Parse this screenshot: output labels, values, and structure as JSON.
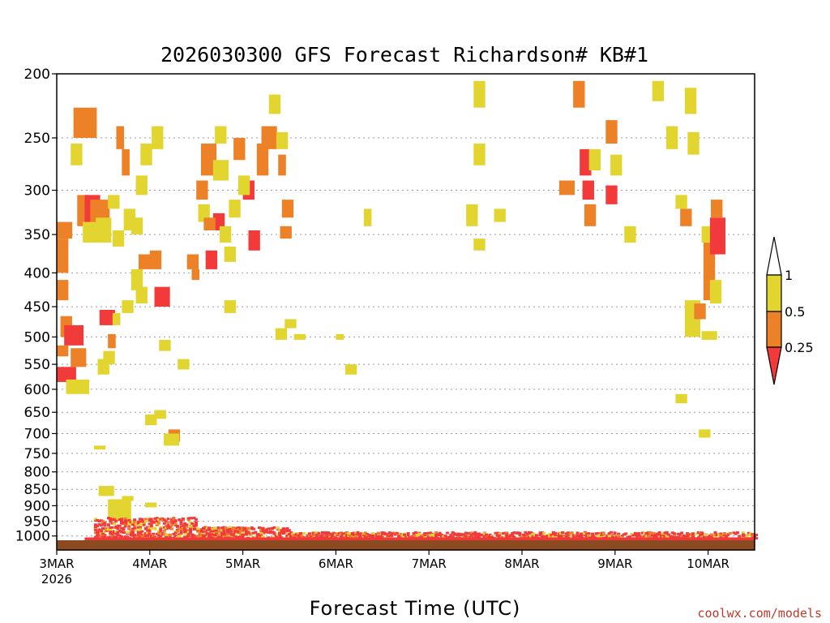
{
  "chart_data": {
    "type": "heatmap",
    "title": "2026030300 GFS Forecast Richardson# KB#1",
    "xlabel": "Forecast Time (UTC)",
    "ylabel": "",
    "credit": "coolwx.com/models",
    "y_scale": "log",
    "ylim": [
      200,
      1050
    ],
    "y_ticks": [
      "200",
      "250",
      "300",
      "350",
      "400",
      "450",
      "500",
      "550",
      "600",
      "650",
      "700",
      "750",
      "800",
      "850",
      "900",
      "950",
      "1000"
    ],
    "xlim": [
      "2026-03-03 00Z",
      "2026-03-10 12Z"
    ],
    "x_ticks": [
      {
        "label": "3MAR",
        "sub": "2026",
        "day": 0
      },
      {
        "label": "4MAR",
        "sub": "",
        "day": 1
      },
      {
        "label": "5MAR",
        "sub": "",
        "day": 2
      },
      {
        "label": "6MAR",
        "sub": "",
        "day": 3
      },
      {
        "label": "7MAR",
        "sub": "",
        "day": 4
      },
      {
        "label": "8MAR",
        "sub": "",
        "day": 5
      },
      {
        "label": "9MAR",
        "sub": "",
        "day": 6
      },
      {
        "label": "10MAR",
        "sub": "",
        "day": 7
      }
    ],
    "grid": true,
    "legend": {
      "placement": "right",
      "levels": [
        "1",
        "0.5",
        "0.25"
      ],
      "colors": {
        "low": "#f23a3a",
        "mid": "#ed8127",
        "high": "#e3d530",
        "ground": "#8c4a22"
      }
    },
    "cells": [
      {
        "day": 0.0,
        "hours": 3,
        "p_top": 515,
        "p_bot": 535,
        "bin": "mid"
      },
      {
        "day": 0.0,
        "hours": 5,
        "p_top": 555,
        "p_bot": 585,
        "bin": "low"
      },
      {
        "day": 0.0,
        "hours": 4,
        "p_top": 335,
        "p_bot": 355,
        "bin": "mid"
      },
      {
        "day": 0.0,
        "hours": 3,
        "p_top": 355,
        "p_bot": 400,
        "bin": "mid"
      },
      {
        "day": 0.0,
        "hours": 3,
        "p_top": 410,
        "p_bot": 440,
        "bin": "mid"
      },
      {
        "day": 0.04,
        "hours": 3,
        "p_top": 465,
        "p_bot": 500,
        "bin": "mid"
      },
      {
        "day": 0.08,
        "hours": 5,
        "p_top": 480,
        "p_bot": 515,
        "bin": "low"
      },
      {
        "day": 0.1,
        "hours": 6,
        "p_top": 580,
        "p_bot": 610,
        "bin": "high"
      },
      {
        "day": 0.15,
        "hours": 4,
        "p_top": 520,
        "p_bot": 555,
        "bin": "mid"
      },
      {
        "day": 0.18,
        "hours": 6,
        "p_top": 225,
        "p_bot": 250,
        "bin": "mid"
      },
      {
        "day": 0.15,
        "hours": 3,
        "p_top": 255,
        "p_bot": 275,
        "bin": "high"
      },
      {
        "day": 0.22,
        "hours": 3,
        "p_top": 305,
        "p_bot": 340,
        "bin": "mid"
      },
      {
        "day": 0.3,
        "hours": 4,
        "p_top": 305,
        "p_bot": 345,
        "bin": "low"
      },
      {
        "day": 0.36,
        "hours": 5,
        "p_top": 310,
        "p_bot": 335,
        "bin": "mid"
      },
      {
        "day": 0.28,
        "hours": 5,
        "p_top": 335,
        "p_bot": 360,
        "bin": "high"
      },
      {
        "day": 0.42,
        "hours": 4,
        "p_top": 330,
        "p_bot": 360,
        "bin": "high"
      },
      {
        "day": 0.46,
        "hours": 4,
        "p_top": 455,
        "p_bot": 480,
        "bin": "low"
      },
      {
        "day": 0.44,
        "hours": 3,
        "p_top": 540,
        "p_bot": 570,
        "bin": "high"
      },
      {
        "day": 0.55,
        "hours": 2,
        "p_top": 495,
        "p_bot": 520,
        "bin": "mid"
      },
      {
        "day": 0.6,
        "hours": 2,
        "p_top": 460,
        "p_bot": 480,
        "bin": "high"
      },
      {
        "day": 0.64,
        "hours": 2,
        "p_top": 240,
        "p_bot": 260,
        "bin": "mid"
      },
      {
        "day": 0.7,
        "hours": 2,
        "p_top": 260,
        "p_bot": 285,
        "bin": "mid"
      },
      {
        "day": 0.85,
        "hours": 3,
        "p_top": 420,
        "p_bot": 445,
        "bin": "high"
      },
      {
        "day": 0.88,
        "hours": 3,
        "p_top": 375,
        "p_bot": 395,
        "bin": "mid"
      },
      {
        "day": 0.95,
        "hours": 3,
        "p_top": 655,
        "p_bot": 680,
        "bin": "high"
      },
      {
        "day": 1.05,
        "hours": 4,
        "p_top": 420,
        "p_bot": 450,
        "bin": "low"
      },
      {
        "day": 1.1,
        "hours": 3,
        "p_top": 505,
        "p_bot": 525,
        "bin": "high"
      },
      {
        "day": 1.2,
        "hours": 3,
        "p_top": 690,
        "p_bot": 720,
        "bin": "mid"
      },
      {
        "day": 1.3,
        "hours": 3,
        "p_top": 540,
        "p_bot": 560,
        "bin": "high"
      },
      {
        "day": 1.55,
        "hours": 4,
        "p_top": 255,
        "p_bot": 285,
        "bin": "mid"
      },
      {
        "day": 1.68,
        "hours": 4,
        "p_top": 270,
        "p_bot": 290,
        "bin": "high"
      },
      {
        "day": 1.6,
        "hours": 3,
        "p_top": 370,
        "p_bot": 395,
        "bin": "low"
      },
      {
        "day": 1.68,
        "hours": 3,
        "p_top": 325,
        "p_bot": 345,
        "bin": "low"
      },
      {
        "day": 2.0,
        "hours": 3,
        "p_top": 290,
        "p_bot": 310,
        "bin": "low"
      },
      {
        "day": 2.06,
        "hours": 3,
        "p_top": 345,
        "p_bot": 370,
        "bin": "low"
      },
      {
        "day": 2.15,
        "hours": 3,
        "p_top": 255,
        "p_bot": 285,
        "bin": "mid"
      },
      {
        "day": 2.2,
        "hours": 4,
        "p_top": 240,
        "p_bot": 260,
        "bin": "mid"
      },
      {
        "day": 2.28,
        "hours": 3,
        "p_top": 215,
        "p_bot": 230,
        "bin": "high"
      },
      {
        "day": 2.35,
        "hours": 3,
        "p_top": 485,
        "p_bot": 505,
        "bin": "high"
      },
      {
        "day": 2.36,
        "hours": 3,
        "p_top": 245,
        "p_bot": 260,
        "bin": "high"
      },
      {
        "day": 2.38,
        "hours": 2,
        "p_top": 265,
        "p_bot": 285,
        "bin": "mid"
      },
      {
        "day": 5.4,
        "hours": 4,
        "p_top": 290,
        "p_bot": 305,
        "bin": "mid"
      },
      {
        "day": 5.55,
        "hours": 3,
        "p_top": 205,
        "p_bot": 225,
        "bin": "mid"
      },
      {
        "day": 5.62,
        "hours": 3,
        "p_top": 260,
        "p_bot": 285,
        "bin": "low"
      },
      {
        "day": 5.65,
        "hours": 3,
        "p_top": 290,
        "p_bot": 310,
        "bin": "low"
      },
      {
        "day": 5.67,
        "hours": 3,
        "p_top": 315,
        "p_bot": 340,
        "bin": "mid"
      },
      {
        "day": 5.72,
        "hours": 3,
        "p_top": 260,
        "p_bot": 280,
        "bin": "high"
      },
      {
        "day": 5.9,
        "hours": 3,
        "p_top": 235,
        "p_bot": 255,
        "bin": "mid"
      },
      {
        "day": 5.9,
        "hours": 3,
        "p_top": 295,
        "p_bot": 315,
        "bin": "low"
      },
      {
        "day": 5.95,
        "hours": 3,
        "p_top": 265,
        "p_bot": 285,
        "bin": "high"
      },
      {
        "day": 6.4,
        "hours": 3,
        "p_top": 205,
        "p_bot": 220,
        "bin": "high"
      },
      {
        "day": 6.55,
        "hours": 3,
        "p_top": 240,
        "p_bot": 260,
        "bin": "high"
      },
      {
        "day": 6.1,
        "hours": 3,
        "p_top": 340,
        "p_bot": 360,
        "bin": "high"
      },
      {
        "day": 6.75,
        "hours": 4,
        "p_top": 440,
        "p_bot": 500,
        "bin": "high"
      },
      {
        "day": 6.85,
        "hours": 3,
        "p_top": 445,
        "p_bot": 470,
        "bin": "mid"
      },
      {
        "day": 6.93,
        "hours": 3,
        "p_top": 340,
        "p_bot": 360,
        "bin": "high"
      },
      {
        "day": 6.93,
        "hours": 4,
        "p_top": 490,
        "p_bot": 505,
        "bin": "high"
      },
      {
        "day": 6.95,
        "hours": 3,
        "p_top": 360,
        "p_bot": 440,
        "bin": "mid"
      },
      {
        "day": 7.02,
        "hours": 3,
        "p_top": 410,
        "p_bot": 445,
        "bin": "high"
      },
      {
        "day": 7.02,
        "hours": 4,
        "p_top": 330,
        "p_bot": 375,
        "bin": "low"
      },
      {
        "day": 7.03,
        "hours": 3,
        "p_top": 310,
        "p_bot": 330,
        "bin": "mid"
      },
      {
        "day": 6.75,
        "hours": 3,
        "p_top": 210,
        "p_bot": 230,
        "bin": "high"
      },
      {
        "day": 6.78,
        "hours": 3,
        "p_top": 245,
        "p_bot": 265,
        "bin": "high"
      },
      {
        "day": 6.7,
        "hours": 3,
        "p_top": 320,
        "p_bot": 340,
        "bin": "mid"
      },
      {
        "day": 6.65,
        "hours": 3,
        "p_top": 305,
        "p_bot": 320,
        "bin": "high"
      },
      {
        "day": 6.9,
        "hours": 3,
        "p_top": 690,
        "p_bot": 710,
        "bin": "high"
      },
      {
        "day": 6.65,
        "hours": 3,
        "p_top": 610,
        "p_bot": 630,
        "bin": "high"
      },
      {
        "day": 4.7,
        "hours": 3,
        "p_top": 320,
        "p_bot": 335,
        "bin": "high"
      },
      {
        "day": 4.4,
        "hours": 3,
        "p_top": 315,
        "p_bot": 340,
        "bin": "high"
      },
      {
        "day": 4.48,
        "hours": 3,
        "p_top": 205,
        "p_bot": 225,
        "bin": "high"
      },
      {
        "day": 4.48,
        "hours": 3,
        "p_top": 255,
        "p_bot": 275,
        "bin": "high"
      },
      {
        "day": 4.48,
        "hours": 3,
        "p_top": 355,
        "p_bot": 370,
        "bin": "high"
      },
      {
        "day": 3.3,
        "hours": 2,
        "p_top": 320,
        "p_bot": 340,
        "bin": "high"
      },
      {
        "day": 2.55,
        "hours": 3,
        "p_top": 495,
        "p_bot": 505,
        "bin": "high"
      },
      {
        "day": 2.45,
        "hours": 3,
        "p_top": 470,
        "p_bot": 485,
        "bin": "high"
      },
      {
        "day": 2.42,
        "hours": 3,
        "p_top": 310,
        "p_bot": 330,
        "bin": "mid"
      },
      {
        "day": 2.4,
        "hours": 3,
        "p_top": 340,
        "p_bot": 355,
        "bin": "mid"
      },
      {
        "day": 1.9,
        "hours": 3,
        "p_top": 250,
        "p_bot": 270,
        "bin": "mid"
      },
      {
        "day": 1.95,
        "hours": 3,
        "p_top": 285,
        "p_bot": 305,
        "bin": "high"
      },
      {
        "day": 1.85,
        "hours": 3,
        "p_top": 310,
        "p_bot": 330,
        "bin": "high"
      },
      {
        "day": 1.8,
        "hours": 3,
        "p_top": 365,
        "p_bot": 385,
        "bin": "high"
      },
      {
        "day": 1.8,
        "hours": 3,
        "p_top": 440,
        "p_bot": 460,
        "bin": "high"
      },
      {
        "day": 1.75,
        "hours": 3,
        "p_top": 340,
        "p_bot": 360,
        "bin": "high"
      },
      {
        "day": 1.7,
        "hours": 3,
        "p_top": 240,
        "p_bot": 255,
        "bin": "high"
      },
      {
        "day": 1.4,
        "hours": 3,
        "p_top": 375,
        "p_bot": 395,
        "bin": "mid"
      },
      {
        "day": 1.45,
        "hours": 2,
        "p_top": 395,
        "p_bot": 410,
        "bin": "mid"
      },
      {
        "day": 1.5,
        "hours": 3,
        "p_top": 290,
        "p_bot": 310,
        "bin": "mid"
      },
      {
        "day": 1.52,
        "hours": 3,
        "p_top": 315,
        "p_bot": 335,
        "bin": "high"
      },
      {
        "day": 1.58,
        "hours": 3,
        "p_top": 330,
        "p_bot": 345,
        "bin": "mid"
      },
      {
        "day": 1.0,
        "hours": 3,
        "p_top": 370,
        "p_bot": 395,
        "bin": "mid"
      },
      {
        "day": 1.02,
        "hours": 3,
        "p_top": 240,
        "p_bot": 260,
        "bin": "high"
      },
      {
        "day": 0.9,
        "hours": 3,
        "p_top": 255,
        "p_bot": 275,
        "bin": "high"
      },
      {
        "day": 0.85,
        "hours": 3,
        "p_top": 285,
        "p_bot": 305,
        "bin": "high"
      },
      {
        "day": 0.8,
        "hours": 3,
        "p_top": 395,
        "p_bot": 425,
        "bin": "high"
      },
      {
        "day": 0.7,
        "hours": 3,
        "p_top": 440,
        "p_bot": 460,
        "bin": "high"
      },
      {
        "day": 0.72,
        "hours": 3,
        "p_top": 320,
        "p_bot": 345,
        "bin": "high"
      },
      {
        "day": 0.8,
        "hours": 3,
        "p_top": 330,
        "p_bot": 350,
        "bin": "high"
      },
      {
        "day": 0.55,
        "hours": 3,
        "p_top": 305,
        "p_bot": 320,
        "bin": "high"
      },
      {
        "day": 0.6,
        "hours": 3,
        "p_top": 345,
        "p_bot": 365,
        "bin": "high"
      },
      {
        "day": 0.5,
        "hours": 3,
        "p_top": 525,
        "p_bot": 550,
        "bin": "high"
      },
      {
        "day": 0.4,
        "hours": 3,
        "p_top": 730,
        "p_bot": 740,
        "bin": "high"
      },
      {
        "day": 0.45,
        "hours": 4,
        "p_top": 840,
        "p_bot": 870,
        "bin": "high"
      },
      {
        "day": 0.55,
        "hours": 6,
        "p_top": 880,
        "p_bot": 945,
        "bin": "high"
      },
      {
        "day": 0.7,
        "hours": 3,
        "p_top": 870,
        "p_bot": 885,
        "bin": "high"
      },
      {
        "day": 0.95,
        "hours": 3,
        "p_top": 890,
        "p_bot": 905,
        "bin": "high"
      },
      {
        "day": 1.05,
        "hours": 3,
        "p_top": 645,
        "p_bot": 665,
        "bin": "high"
      },
      {
        "day": 1.15,
        "hours": 4,
        "p_top": 700,
        "p_bot": 730,
        "bin": "high"
      },
      {
        "day": 3.0,
        "hours": 2,
        "p_top": 495,
        "p_bot": 505,
        "bin": "high"
      },
      {
        "day": 3.1,
        "hours": 3,
        "p_top": 550,
        "p_bot": 570,
        "bin": "high"
      }
    ],
    "surface_noise": {
      "p_top": 935,
      "p_bot": 1005,
      "bin": "low"
    }
  }
}
